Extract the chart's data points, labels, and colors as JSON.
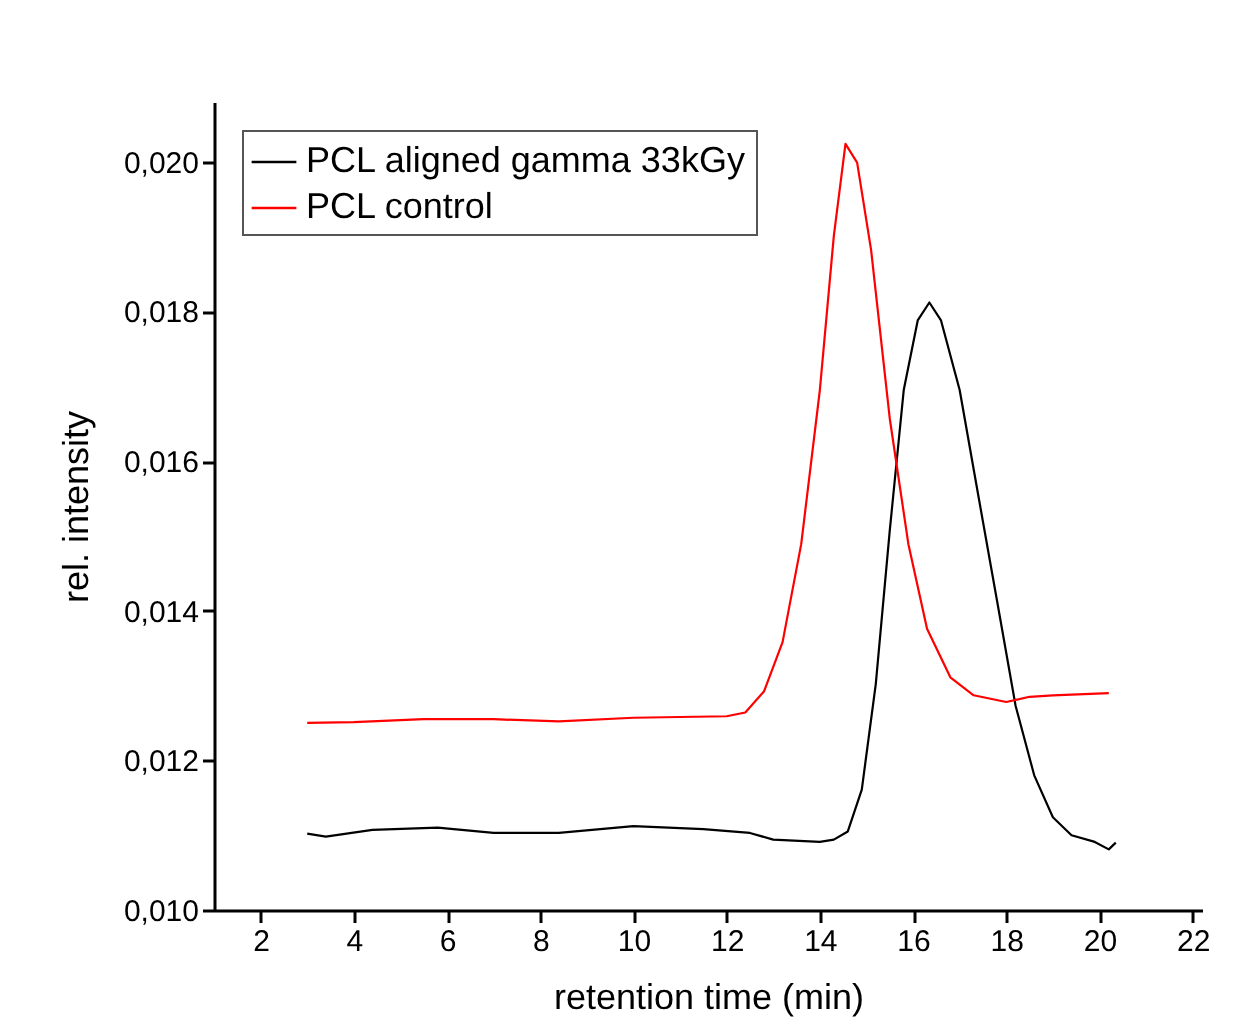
{
  "chart_data": {
    "type": "line",
    "xlabel": "retention time (min)",
    "ylabel": "rel. intensity",
    "xlim": [
      1,
      22.2
    ],
    "xticks": [
      2,
      4,
      6,
      8,
      10,
      12,
      14,
      16,
      18,
      20,
      22
    ],
    "ylim": [
      0.01,
      0.0208
    ],
    "yticks": [
      {
        "value": 0.01,
        "label": "0,010"
      },
      {
        "value": 0.012,
        "label": "0,012"
      },
      {
        "value": 0.014,
        "label": "0,014"
      },
      {
        "value": 0.016,
        "label": "0,016"
      },
      {
        "value": 0.018,
        "label": "0,018"
      },
      {
        "value": 0.02,
        "label": "0,020"
      }
    ],
    "grid": false,
    "legend": "top left",
    "marker": "none",
    "line_style": "solid",
    "series": [
      {
        "name": "PCL aligned gamma 33kGy",
        "color": "#000000",
        "x": [
          3.0,
          3.4,
          4.4,
          5.8,
          7.0,
          8.4,
          10.0,
          11.5,
          12.5,
          13.0,
          14.0,
          14.3,
          14.6,
          14.9,
          15.2,
          15.5,
          15.8,
          16.1,
          16.35,
          16.6,
          17.0,
          17.4,
          17.8,
          18.2,
          18.6,
          19.0,
          19.4,
          19.9,
          20.2,
          20.35
        ],
        "values": [
          0.01102,
          0.01098,
          0.01107,
          0.0111,
          0.01103,
          0.01103,
          0.01112,
          0.01108,
          0.01103,
          0.01094,
          0.01091,
          0.01094,
          0.01105,
          0.01161,
          0.01302,
          0.01507,
          0.01695,
          0.01788,
          0.01812,
          0.01788,
          0.01695,
          0.01554,
          0.01414,
          0.01273,
          0.0118,
          0.01124,
          0.011,
          0.01091,
          0.01081,
          0.0109
        ]
      },
      {
        "name": "PCL control",
        "color": "#ff0000",
        "x": [
          3.0,
          4.0,
          5.5,
          7.0,
          8.4,
          10.0,
          12.0,
          12.4,
          12.8,
          13.2,
          13.6,
          14.0,
          14.3,
          14.55,
          14.8,
          15.1,
          15.5,
          15.9,
          16.3,
          16.8,
          17.3,
          18.0,
          18.5,
          19.0,
          20.2
        ],
        "values": [
          0.0125,
          0.01251,
          0.01255,
          0.01255,
          0.01252,
          0.01257,
          0.01259,
          0.01264,
          0.01292,
          0.01358,
          0.01489,
          0.01695,
          0.01901,
          0.02024,
          0.01999,
          0.01882,
          0.01657,
          0.01489,
          0.01376,
          0.01311,
          0.01287,
          0.01278,
          0.01285,
          0.01287,
          0.0129
        ]
      }
    ]
  }
}
